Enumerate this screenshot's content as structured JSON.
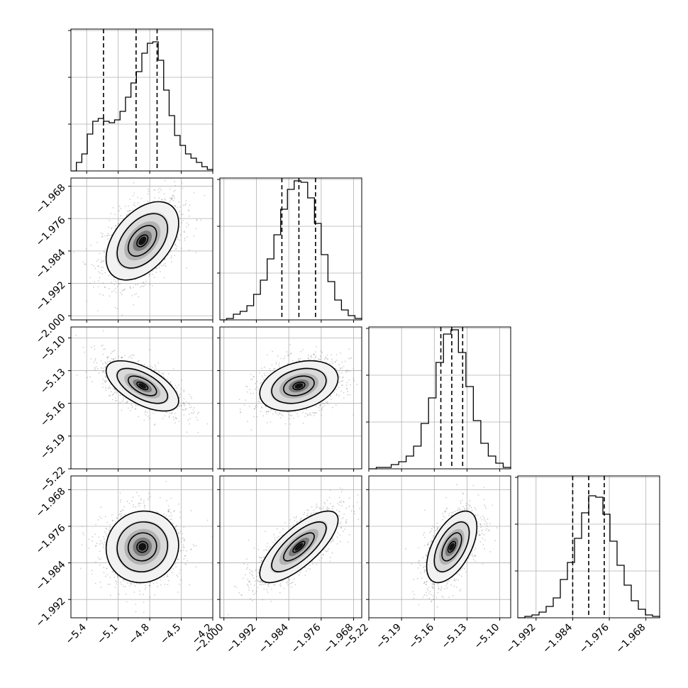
{
  "chart_data": {
    "type": "corner",
    "grid": true,
    "parameters": [
      {
        "range": [
          -5.55,
          -4.2
        ],
        "ticks": [
          -5.4,
          -5.1,
          -4.8,
          -4.5,
          -4.2
        ],
        "tick_labels": [
          "−5.4",
          "−5.1",
          "−4.8",
          "−4.5",
          "−4.2"
        ],
        "quantiles": [
          -5.24,
          -4.93,
          -4.73
        ],
        "mean": -4.87,
        "sd": 0.15
      },
      {
        "range": [
          -2.001,
          -1.966
        ],
        "ticks": [
          -2.0,
          -1.992,
          -1.984,
          -1.976,
          -1.968
        ],
        "tick_labels": [
          "−2.000",
          "−1.992",
          "−1.984",
          "−1.976",
          "−1.968"
        ],
        "quantiles": [
          -1.9857,
          -1.9815,
          -1.9774
        ],
        "mean": -1.9815,
        "sd": 0.0042
      },
      {
        "range": [
          -5.22,
          -5.09
        ],
        "ticks": [
          -5.22,
          -5.19,
          -5.16,
          -5.13,
          -5.1
        ],
        "tick_labels": [
          "−5.22",
          "−5.19",
          "−5.16",
          "−5.13",
          "−5.10"
        ],
        "quantiles": [
          -5.154,
          -5.144,
          -5.134
        ],
        "mean": -5.144,
        "sd": 0.01
      },
      {
        "range": [
          -1.996,
          -1.965
        ],
        "ticks": [
          -1.992,
          -1.984,
          -1.976,
          -1.968
        ],
        "tick_labels": [
          "−1.992",
          "−1.984",
          "−1.976",
          "−1.968"
        ],
        "quantiles": [
          -1.984,
          -1.9805,
          -1.9771
        ],
        "mean": -1.9805,
        "sd": 0.0034
      }
    ],
    "histograms": [
      [
        0,
        0.06,
        0.12,
        0.26,
        0.35,
        0.37,
        0.35,
        0.34,
        0.36,
        0.42,
        0.52,
        0.62,
        0.7,
        0.83,
        0.9,
        0.91,
        0.78,
        0.57,
        0.39,
        0.25,
        0.18,
        0.12,
        0.09,
        0.06,
        0.03,
        0.01
      ],
      [
        0,
        0.01,
        0.04,
        0.06,
        0.1,
        0.18,
        0.28,
        0.43,
        0.6,
        0.78,
        0.92,
        0.98,
        0.97,
        0.86,
        0.68,
        0.46,
        0.27,
        0.14,
        0.07,
        0.03,
        0.01
      ],
      [
        0,
        0.01,
        0.01,
        0.03,
        0.05,
        0.09,
        0.16,
        0.32,
        0.5,
        0.75,
        0.95,
        0.98,
        0.82,
        0.58,
        0.34,
        0.18,
        0.09,
        0.04,
        0.01
      ],
      [
        0,
        0.01,
        0.02,
        0.04,
        0.08,
        0.14,
        0.27,
        0.39,
        0.56,
        0.74,
        0.86,
        0.85,
        0.73,
        0.54,
        0.37,
        0.23,
        0.12,
        0.06,
        0.02,
        0.01
      ]
    ],
    "correlations": {
      "1-0": 0.45,
      "2-0": -0.6,
      "2-1": 0.3,
      "3-0": 0.05,
      "3-1": 0.75,
      "3-2": 0.55
    }
  }
}
